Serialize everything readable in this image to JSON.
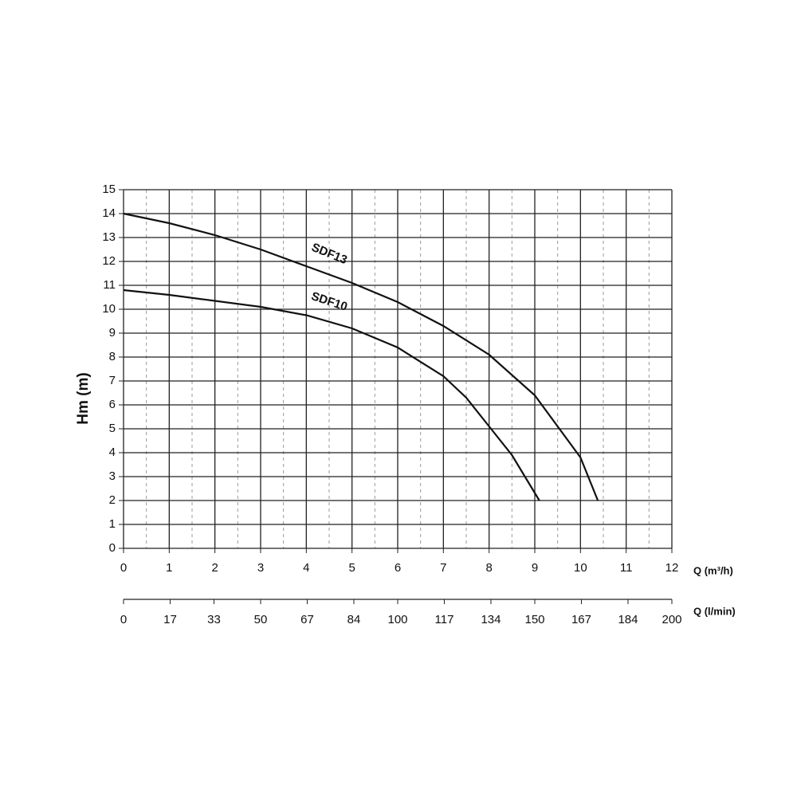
{
  "chart_data": {
    "type": "line",
    "y_label": "Hm (m)",
    "x_label": "Q (m³/h)",
    "x2_label": "Q (l/min)",
    "xlim": [
      0,
      12
    ],
    "xticks": [
      0,
      1,
      2,
      3,
      4,
      5,
      6,
      7,
      8,
      9,
      10,
      11,
      12
    ],
    "x_minor_grid": [
      0.5,
      1.5,
      2.5,
      3.5,
      4.5,
      5.5,
      6.5,
      7.5,
      8.5,
      9.5,
      10.5,
      11.5
    ],
    "x2lim": [
      0,
      200
    ],
    "x2ticks": [
      0,
      17,
      33,
      50,
      67,
      84,
      100,
      117,
      134,
      150,
      167,
      184,
      200
    ],
    "ylim": [
      0,
      15
    ],
    "yticks": [
      0,
      1,
      2,
      3,
      4,
      5,
      6,
      7,
      8,
      9,
      10,
      11,
      12,
      13,
      14,
      15
    ],
    "grid": true,
    "series": [
      {
        "name": "SDF13",
        "color": "#111111",
        "x": [
          0,
          1,
          2,
          3,
          4,
          5,
          6,
          7,
          8,
          9,
          10,
          10.38
        ],
        "values": [
          14,
          13.6,
          13.1,
          12.5,
          11.8,
          11.1,
          10.3,
          9.3,
          8.1,
          6.4,
          3.8,
          2
        ]
      },
      {
        "name": "SDF10",
        "color": "#111111",
        "x": [
          0,
          1,
          2,
          3,
          4,
          5,
          6,
          7,
          7.5,
          8,
          8.5,
          9.1
        ],
        "values": [
          10.8,
          10.6,
          10.35,
          10.1,
          9.75,
          9.2,
          8.4,
          7.2,
          6.3,
          5.1,
          3.9,
          2
        ]
      }
    ]
  }
}
